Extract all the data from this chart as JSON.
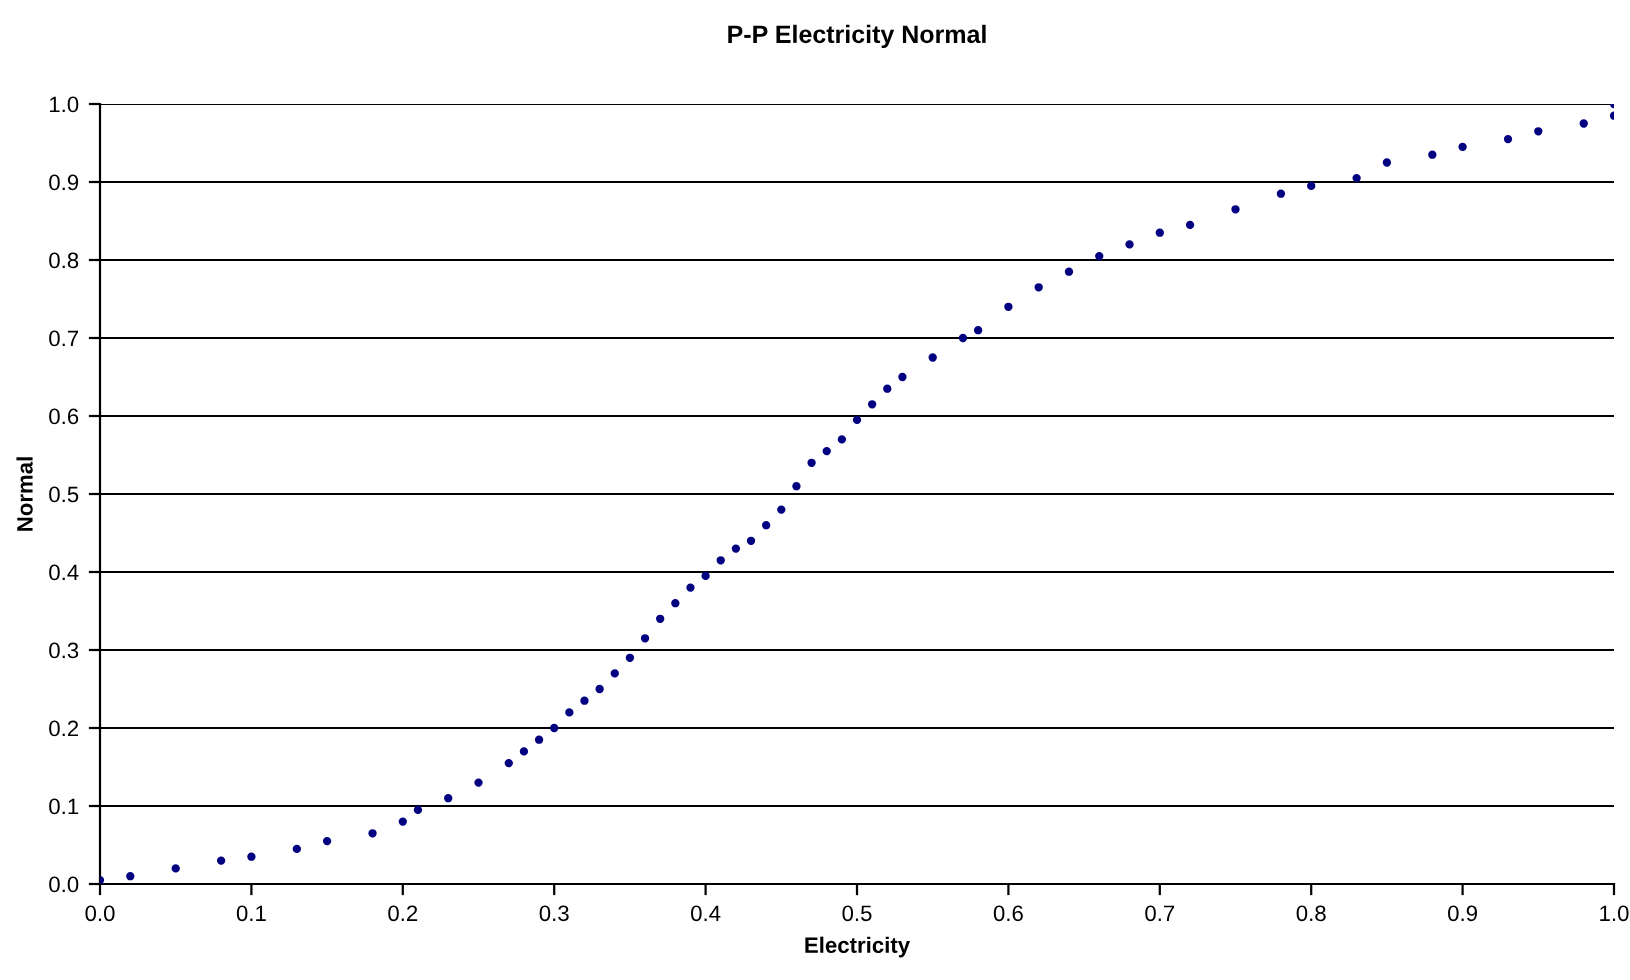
{
  "chart_data": {
    "type": "scatter",
    "title": "P-P Electricity Normal",
    "xlabel": "Electricity",
    "ylabel": "Normal",
    "series": [
      {
        "color": "#000080",
        "x": [
          0.0,
          0.02,
          0.05,
          0.08,
          0.1,
          0.13,
          0.15,
          0.18,
          0.2,
          0.21,
          0.23,
          0.25,
          0.27,
          0.28,
          0.29,
          0.3,
          0.31,
          0.32,
          0.33,
          0.34,
          0.35,
          0.36,
          0.37,
          0.38,
          0.39,
          0.4,
          0.41,
          0.42,
          0.43,
          0.44,
          0.45,
          0.46,
          0.47,
          0.48,
          0.49,
          0.5,
          0.51,
          0.52,
          0.53,
          0.55,
          0.57,
          0.58,
          0.6,
          0.62,
          0.64,
          0.66,
          0.68,
          0.7,
          0.72,
          0.75,
          0.78,
          0.8,
          0.83,
          0.85,
          0.88,
          0.9,
          0.93,
          0.95,
          0.98,
          1.0,
          1.0
        ],
        "values": [
          0.005,
          0.01,
          0.02,
          0.03,
          0.035,
          0.045,
          0.055,
          0.065,
          0.08,
          0.095,
          0.11,
          0.13,
          0.155,
          0.17,
          0.185,
          0.2,
          0.22,
          0.235,
          0.25,
          0.27,
          0.29,
          0.315,
          0.34,
          0.36,
          0.38,
          0.395,
          0.415,
          0.43,
          0.44,
          0.46,
          0.48,
          0.51,
          0.54,
          0.555,
          0.57,
          0.595,
          0.615,
          0.635,
          0.65,
          0.675,
          0.7,
          0.71,
          0.74,
          0.765,
          0.785,
          0.805,
          0.82,
          0.835,
          0.845,
          0.865,
          0.885,
          0.895,
          0.905,
          0.925,
          0.935,
          0.945,
          0.955,
          0.965,
          0.975,
          0.985,
          1.0
        ]
      }
    ],
    "xlim": [
      0.0,
      1.0
    ],
    "ylim": [
      0.0,
      1.0
    ],
    "xticks": [
      {
        "value": 0,
        "label": "0.0"
      },
      0.1,
      0.2,
      0.3,
      0.4,
      0.5,
      0.6,
      0.7,
      0.8,
      0.9,
      {
        "value": 1,
        "label": "1.0"
      }
    ],
    "yticks": [
      {
        "value": 0,
        "label": "0.0"
      },
      0.1,
      0.2,
      0.3,
      0.4,
      0.5,
      0.6,
      0.7,
      0.8,
      0.9,
      {
        "value": 1,
        "label": "1.0"
      }
    ],
    "grid": "y",
    "marker": "circle",
    "legend": false
  }
}
